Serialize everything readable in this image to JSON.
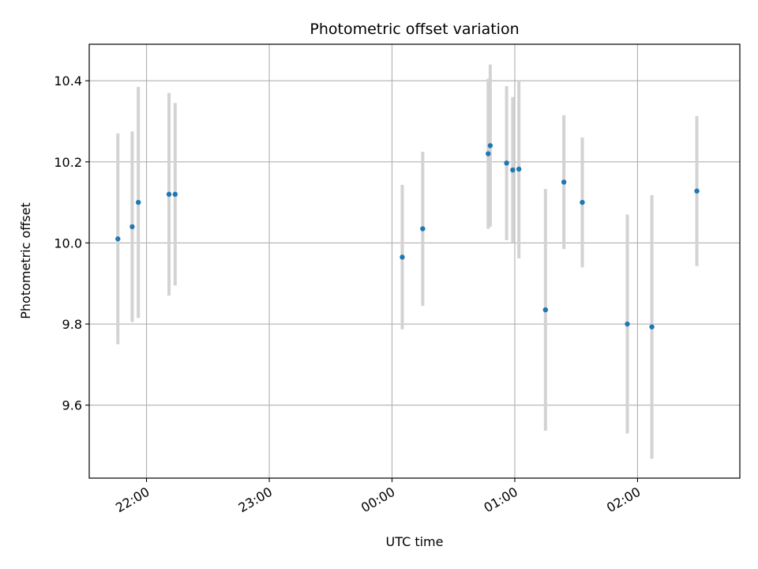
{
  "chart_data": {
    "type": "scatter",
    "title": "Photometric offset variation",
    "xlabel": "UTC time",
    "ylabel": "Photometric offset",
    "x_axis": "time (UTC)",
    "xlim": [
      "21:32",
      "02:50"
    ],
    "ylim": [
      9.42,
      10.49
    ],
    "x_ticks": [
      "22:00",
      "23:00",
      "00:00",
      "01:00",
      "02:00"
    ],
    "y_ticks": [
      "9.6",
      "9.8",
      "10.0",
      "10.2",
      "10.4"
    ],
    "y_tick_values": [
      9.6,
      9.8,
      10.0,
      10.2,
      10.4
    ],
    "grid": true,
    "colors": {
      "point": "#1f77b4",
      "errorbar": "#d3d3d3",
      "grid": "#b0b0b0"
    },
    "points": [
      {
        "time": "21:46",
        "y": 10.01,
        "err": 0.26
      },
      {
        "time": "21:53",
        "y": 10.04,
        "err": 0.235
      },
      {
        "time": "21:56",
        "y": 10.1,
        "err": 0.285
      },
      {
        "time": "22:11",
        "y": 10.12,
        "err": 0.25
      },
      {
        "time": "22:14",
        "y": 10.12,
        "err": 0.225
      },
      {
        "time": "00:05",
        "y": 9.965,
        "err": 0.178
      },
      {
        "time": "00:15",
        "y": 10.035,
        "err": 0.19
      },
      {
        "time": "00:47",
        "y": 10.22,
        "err": 0.185
      },
      {
        "time": "00:48",
        "y": 10.24,
        "err": 0.2
      },
      {
        "time": "00:56",
        "y": 10.197,
        "err": 0.19
      },
      {
        "time": "00:59",
        "y": 10.18,
        "err": 0.18
      },
      {
        "time": "01:02",
        "y": 10.182,
        "err": 0.22
      },
      {
        "time": "01:15",
        "y": 9.835,
        "err": 0.298
      },
      {
        "time": "01:24",
        "y": 10.15,
        "err": 0.165
      },
      {
        "time": "01:33",
        "y": 10.1,
        "err": 0.16
      },
      {
        "time": "01:55",
        "y": 9.8,
        "err": 0.27
      },
      {
        "time": "02:07",
        "y": 9.793,
        "err": 0.325
      },
      {
        "time": "02:29",
        "y": 10.128,
        "err": 0.185
      }
    ]
  }
}
